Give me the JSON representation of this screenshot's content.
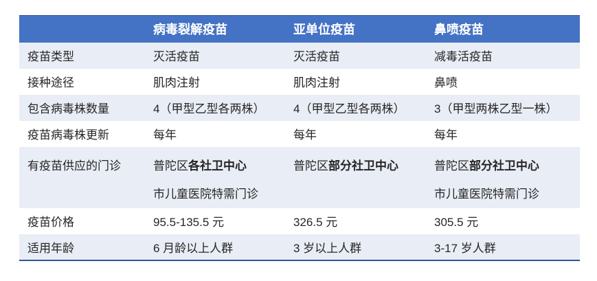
{
  "colors": {
    "header_bg": "#4472C4",
    "header_text": "#FFFFFF",
    "band_bg": "#E9EDF5",
    "body_text": "#262626",
    "border_blue": "#2F5597"
  },
  "table": {
    "header": {
      "corner": "",
      "col1": "病毒裂解疫苗",
      "col2": "亚单位疫苗",
      "col3": "鼻喷疫苗"
    },
    "rows": [
      {
        "label": "疫苗类型",
        "c1": "灭活疫苗",
        "c2": "灭活疫苗",
        "c3": "减毒活疫苗"
      },
      {
        "label": "接种途径",
        "c1": "肌肉注射",
        "c2": "肌肉注射",
        "c3": "鼻喷"
      },
      {
        "label": "包含病毒株数量",
        "c1": "4（甲型乙型各两株）",
        "c2": "4（甲型乙型各两株）",
        "c3": "3（甲型两株乙型一株）"
      },
      {
        "label": "疫苗病毒株更新",
        "c1": "每年",
        "c2": "每年",
        "c3": "每年"
      },
      {
        "label": "有疫苗供应的门诊",
        "c1_prefix": "普陀区",
        "c1_bold": "各社卫中心",
        "c1_line2": "市儿童医院特需门诊",
        "c2_prefix": "普陀区",
        "c2_bold": "部分社卫中心",
        "c2_line2": "",
        "c3_prefix": "普陀区",
        "c3_bold": "部分社卫中心",
        "c3_line2": "市儿童医院特需门诊"
      },
      {
        "label": "疫苗价格",
        "c1": "95.5-135.5 元",
        "c2": "326.5 元",
        "c3": "305.5 元"
      },
      {
        "label": "适用年龄",
        "c1": "6 月龄以上人群",
        "c2": "3 岁以上人群",
        "c3": "3-17 岁人群"
      }
    ]
  }
}
